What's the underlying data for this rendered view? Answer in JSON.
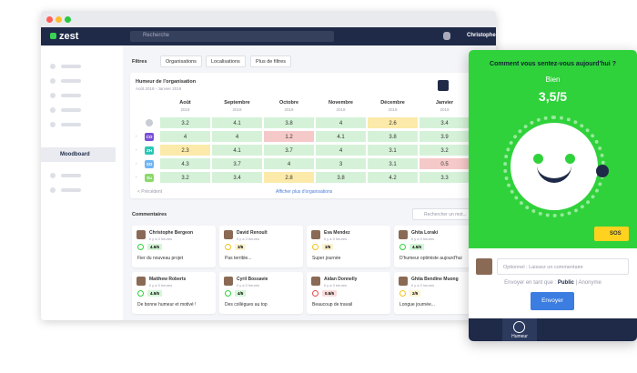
{
  "nav": {
    "logo": "zest",
    "search": "Recherche",
    "user": "Christophe"
  },
  "sidebar": {
    "active": "Moodboard"
  },
  "filters": {
    "label": "Filtres",
    "buttons": [
      "Organisations",
      "Localisations",
      "Plus de filtres"
    ]
  },
  "mood": {
    "title": "Humeur de l'organisation",
    "subtitle": "Août 2018 - Janvier 2019",
    "columns": [
      {
        "month": "Août",
        "year": "2018"
      },
      {
        "month": "Septembre",
        "year": "2018"
      },
      {
        "month": "Octobre",
        "year": "2018"
      },
      {
        "month": "Novembre",
        "year": "2018"
      },
      {
        "month": "Décembre",
        "year": "2018"
      },
      {
        "month": "Janvier",
        "year": "2019"
      }
    ],
    "rows": [
      {
        "tag": null,
        "values": [
          3.2,
          4.1,
          3.8,
          4,
          2.6,
          3.4
        ]
      },
      {
        "tag": "CO",
        "values": [
          4,
          4,
          1.2,
          4.1,
          3.8,
          3.9
        ]
      },
      {
        "tag": "ZH",
        "values": [
          2.3,
          4.1,
          3.7,
          4,
          3.1,
          3.2
        ]
      },
      {
        "tag": "SO",
        "values": [
          4.3,
          3.7,
          4,
          3,
          3.1,
          0.5
        ]
      },
      {
        "tag": "Su",
        "values": [
          3.2,
          3.4,
          2.8,
          3.8,
          4.2,
          3.3
        ]
      }
    ],
    "previous": "< Précédent",
    "more": "Afficher plus d'organisations"
  },
  "comments": {
    "title": "Commentaires",
    "search": "Rechercher un mot...",
    "items": [
      {
        "name": "Christophe Bergeon",
        "time": "Il y a 3 heures",
        "rating": "4.5/5",
        "text": "Fier du nouveau projet"
      },
      {
        "name": "David Renoult",
        "time": "Il y a 3 heures",
        "rating": "3/5",
        "text": "Pas terrible..."
      },
      {
        "name": "Eva Mendez",
        "time": "Il y a 3 heures",
        "rating": "3/5",
        "text": "Super journée"
      },
      {
        "name": "Ghita Loraki",
        "time": "Il y a 3 heures",
        "rating": "4.5/5",
        "text": "D'humeur optimiste aujourd'hui"
      },
      {
        "name": "Matthew Roberts",
        "time": "Il y a 3 heures",
        "rating": "4.5/5",
        "text": "De bonne humeur et motivé !"
      },
      {
        "name": "Cyril Bossavie",
        "time": "Il y a 3 heures",
        "rating": "4/5",
        "text": "Des collègues au top"
      },
      {
        "name": "Aidan Donnelly",
        "time": "Il y a 3 heures",
        "rating": "0.5/5",
        "text": "Beaucoup de travail"
      },
      {
        "name": "Ghita Bendine Muong",
        "time": "Il y a 3 heures",
        "rating": "2/5",
        "text": "Longue journée..."
      }
    ]
  },
  "panel": {
    "question": "Comment vous sentez-vous aujourd'hui ?",
    "mood": "Bien",
    "score": "3,5/5",
    "sos": "SOS",
    "comment": "Optionnel : Laissez un commentaire",
    "send_as": "Envoyer en tant que :",
    "public": "Public",
    "anonymous": "Anonyme",
    "send": "Envoyer",
    "tab": "Humeur"
  }
}
